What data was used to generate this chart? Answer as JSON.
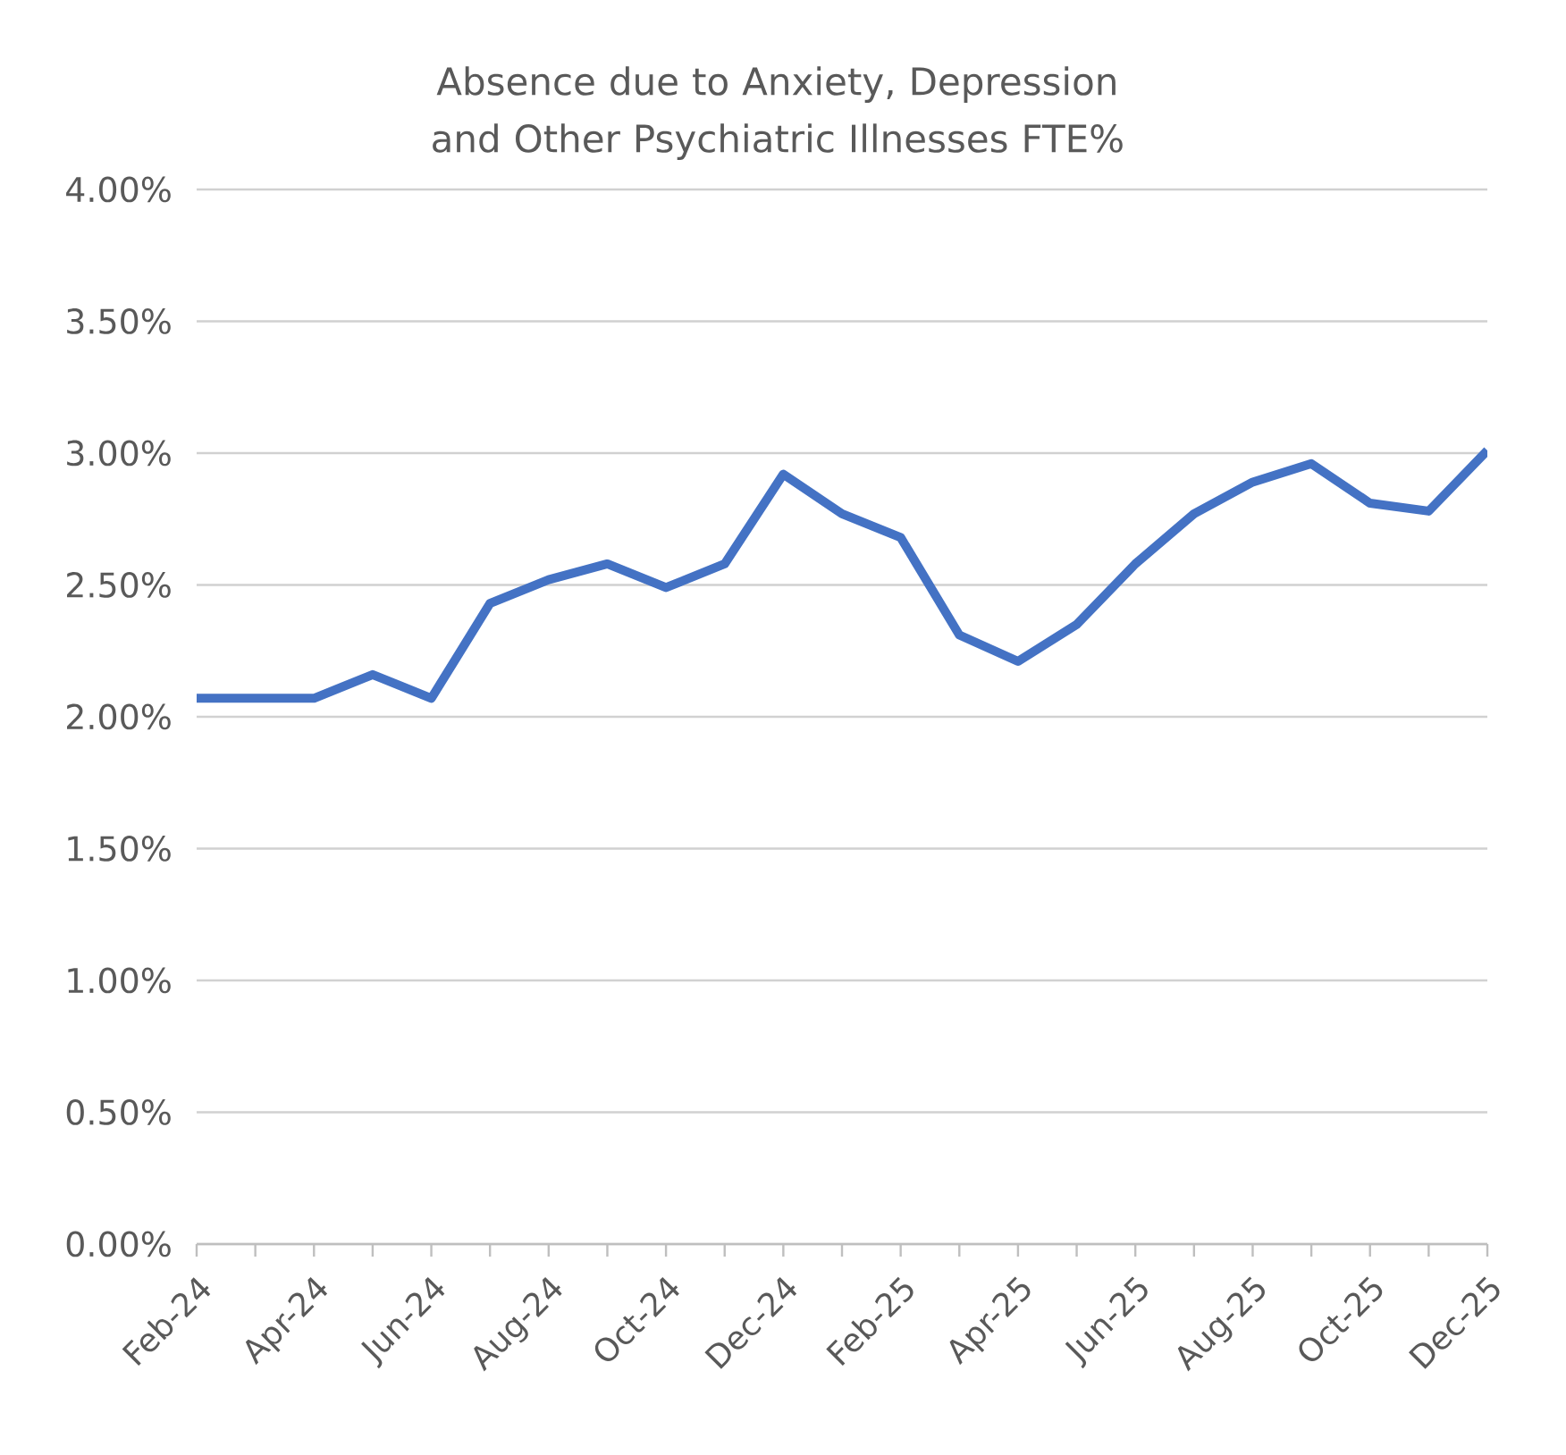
{
  "chart_data": {
    "type": "line",
    "title": "Absence due to Anxiety, Depression and Other Psychiatric Illnesses FTE%",
    "categories": [
      "Feb-24",
      null,
      "Apr-24",
      null,
      "Jun-24",
      null,
      "Aug-24",
      null,
      "Oct-24",
      null,
      "Dec-24",
      null,
      "Feb-25",
      null,
      "Apr-25",
      null,
      "Jun-25",
      null,
      "Aug-25",
      null,
      "Oct-25",
      null,
      "Dec-25"
    ],
    "series": [
      {
        "color": "#4472c4",
        "values": [
          2.07,
          2.07,
          2.07,
          2.16,
          2.07,
          2.43,
          2.52,
          2.58,
          2.49,
          2.58,
          2.92,
          2.77,
          2.68,
          2.31,
          2.21,
          2.35,
          2.58,
          2.77,
          2.89,
          2.96,
          2.81,
          2.78,
          3.01
        ]
      }
    ],
    "ylim": [
      0,
      4
    ],
    "yticks": [
      {
        "value": 0,
        "label": "0.00%"
      },
      {
        "value": 0.5,
        "label": "0.50%"
      },
      {
        "value": 1,
        "label": "1.00%"
      },
      {
        "value": 1.5,
        "label": "1.50%"
      },
      {
        "value": 2,
        "label": "2.00%"
      },
      {
        "value": 2.5,
        "label": "2.50%"
      },
      {
        "value": 3,
        "label": "3.00%"
      },
      {
        "value": 3.5,
        "label": "3.50%"
      },
      {
        "value": 4,
        "label": "4.00%"
      }
    ],
    "grid": "y",
    "marker": "none",
    "line_style": "solid"
  }
}
